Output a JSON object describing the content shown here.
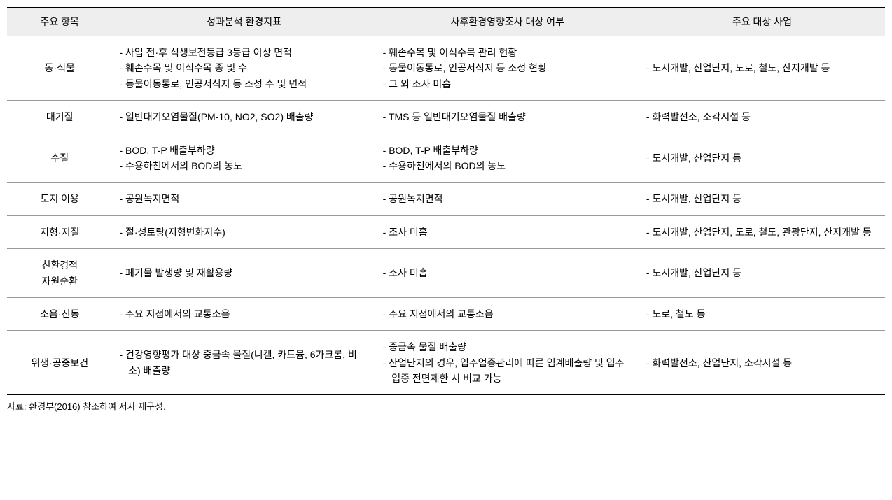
{
  "table": {
    "headers": [
      "주요 항목",
      "성과분석 환경지표",
      "사후환경영향조사 대상 여부",
      "주요 대상 사업"
    ],
    "rows": [
      {
        "category": "동·식물",
        "indicator_items": [
          "- 사업 전·후 식생보전등급 3등급 이상 면적",
          "- 훼손수목 및 이식수목 종 및 수",
          "- 동물이동통로, 인공서식지 등 조성 수 및 면적"
        ],
        "survey_items": [
          "- 훼손수목 및 이식수목 관리 현황",
          "- 동물이동통로, 인공서식지 등 조성 현황",
          "- 그 외 조사 미흡"
        ],
        "project_items": [
          "- 도시개발, 산업단지, 도로, 철도, 산지개발 등"
        ]
      },
      {
        "category": "대기질",
        "indicator_items": [
          "- 일반대기오염물질(PM-10, NO2, SO2) 배출량"
        ],
        "survey_items": [
          "- TMS 등 일반대기오염물질 배출량"
        ],
        "project_items": [
          "- 화력발전소, 소각시설 등"
        ]
      },
      {
        "category": "수질",
        "indicator_items": [
          "- BOD, T-P 배출부하량",
          "- 수용하천에서의 BOD의 농도"
        ],
        "survey_items": [
          "- BOD, T-P 배출부하량",
          "- 수용하천에서의 BOD의 농도"
        ],
        "project_items": [
          "- 도시개발, 산업단지 등"
        ]
      },
      {
        "category": "토지 이용",
        "indicator_items": [
          "- 공원녹지면적"
        ],
        "survey_items": [
          "- 공원녹지면적"
        ],
        "project_items": [
          "- 도시개발, 산업단지 등"
        ]
      },
      {
        "category": "지형·지질",
        "indicator_items": [
          "- 절·성토량(지형변화지수)"
        ],
        "survey_items": [
          "- 조사 미흡"
        ],
        "project_items": [
          "- 도시개발, 산업단지, 도로, 철도, 관광단지, 산지개발 등"
        ]
      },
      {
        "category": "친환경적\n자원순환",
        "indicator_items": [
          "- 폐기물 발생량 및 재활용량"
        ],
        "survey_items": [
          "- 조사 미흡"
        ],
        "project_items": [
          "- 도시개발, 산업단지 등"
        ]
      },
      {
        "category": "소음·진동",
        "indicator_items": [
          "- 주요 지점에서의 교통소음"
        ],
        "survey_items": [
          "- 주요 지점에서의 교통소음"
        ],
        "project_items": [
          "- 도로, 철도 등"
        ]
      },
      {
        "category": "위생·공중보건",
        "indicator_items": [
          "- 건강영향평가 대상 중금속 물질(니켈, 카드뮴, 6가크롬, 비소) 배출량"
        ],
        "survey_items": [
          "- 중금속 물질 배출량",
          "- 산업단지의 경우, 입주업종관리에 따른 임계배출량 및 입주업종 전면제한 시 비교 가능"
        ],
        "project_items": [
          "- 화력발전소, 산업단지, 소각시설 등"
        ]
      }
    ]
  },
  "source_note": "자료: 환경부(2016) 참조하여 저자 재구성."
}
